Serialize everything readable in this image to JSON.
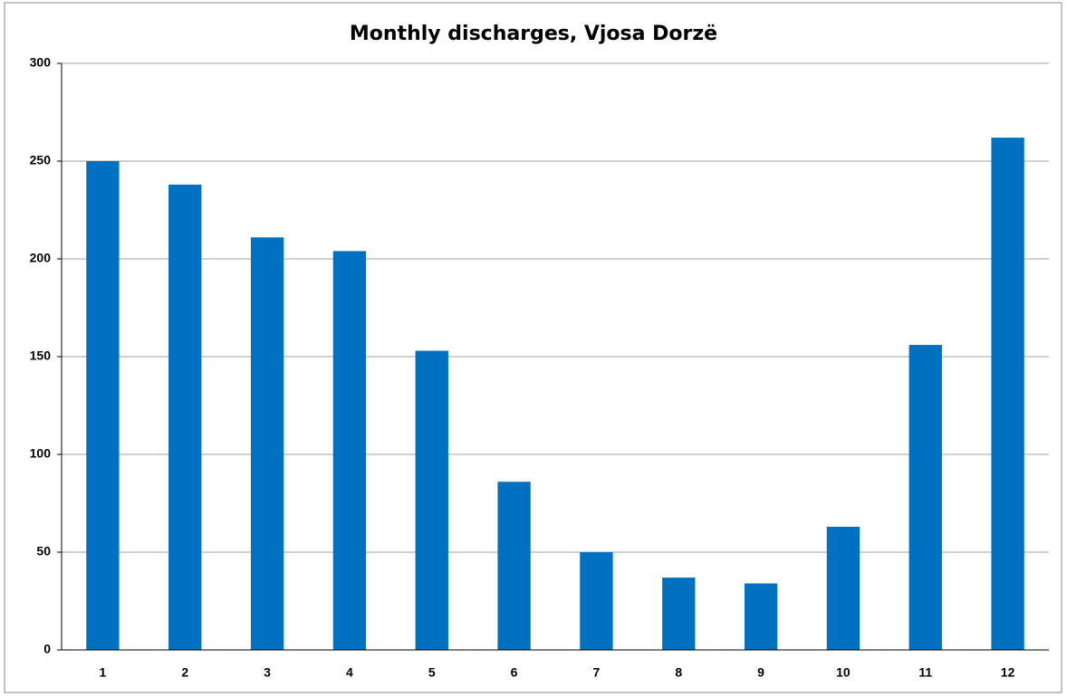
{
  "chart_data": {
    "type": "bar",
    "title": "Monthly discharges, Vjosa Dorzë",
    "categories": [
      "1",
      "2",
      "3",
      "4",
      "5",
      "6",
      "7",
      "8",
      "9",
      "10",
      "11",
      "12"
    ],
    "values": [
      250,
      238,
      211,
      204,
      153,
      86,
      50,
      37,
      34,
      63,
      156,
      262
    ],
    "color": "#0070c0",
    "ylim": [
      0,
      300
    ],
    "yticks": [
      0,
      50,
      100,
      150,
      200,
      250,
      300
    ],
    "grid": true
  }
}
